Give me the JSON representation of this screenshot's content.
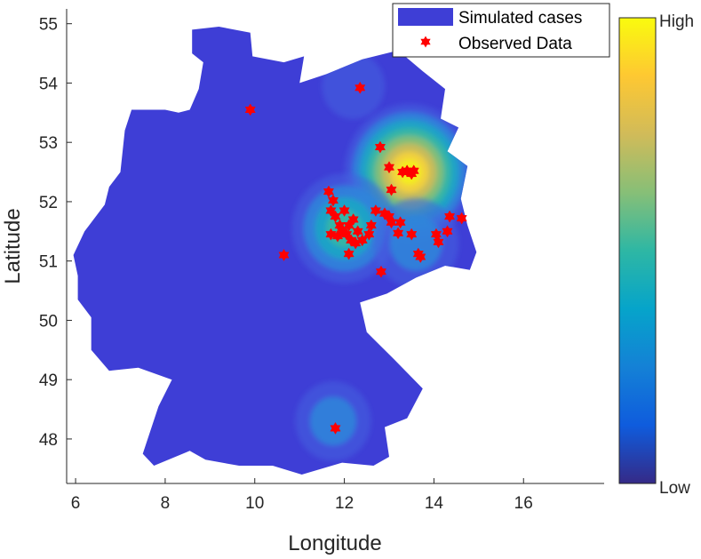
{
  "chart_data": {
    "type": "scatter",
    "background_map": "Germany outline with simulated case density heatmap",
    "xlabel": "Longitude",
    "ylabel": "Latitude",
    "xlim": [
      5.8,
      17.8
    ],
    "ylim": [
      47.25,
      55.25
    ],
    "xticks": [
      6,
      8,
      10,
      12,
      14,
      16
    ],
    "yticks": [
      48,
      49,
      50,
      51,
      52,
      53,
      54,
      55
    ],
    "grid": false,
    "legend": {
      "placement": "top-right",
      "entries": [
        {
          "label": "Simulated cases",
          "marker": "patch",
          "color": "#3e3ed6"
        },
        {
          "label": "Observed Data",
          "marker": "hexagram",
          "color": "#ff0000"
        }
      ]
    },
    "colorbar": {
      "colormap": "parula",
      "low_label": "Low",
      "high_label": "High",
      "colors": [
        "#352a87",
        "#0f5cdd",
        "#1481d6",
        "#06a4ca",
        "#2eb7a4",
        "#87bf77",
        "#d1bb59",
        "#fec832",
        "#f9fb0e"
      ]
    },
    "hotspots": [
      {
        "name": "Berlin area",
        "lon": 13.45,
        "lat": 52.5,
        "intensity": 1.0
      },
      {
        "name": "Leipzig area",
        "lon": 12.0,
        "lat": 51.55,
        "intensity": 0.55
      },
      {
        "name": "Dresden area",
        "lon": 13.6,
        "lat": 51.3,
        "intensity": 0.3
      },
      {
        "name": "Munich area",
        "lon": 11.75,
        "lat": 48.3,
        "intensity": 0.2
      },
      {
        "name": "Rostock area",
        "lon": 12.2,
        "lat": 53.95,
        "intensity": 0.1
      }
    ],
    "observed_points": [
      {
        "lon": 9.9,
        "lat": 53.55
      },
      {
        "lon": 12.35,
        "lat": 53.92
      },
      {
        "lon": 12.8,
        "lat": 52.92
      },
      {
        "lon": 13.0,
        "lat": 52.58
      },
      {
        "lon": 13.3,
        "lat": 52.5
      },
      {
        "lon": 13.4,
        "lat": 52.52
      },
      {
        "lon": 13.5,
        "lat": 52.47
      },
      {
        "lon": 13.55,
        "lat": 52.52
      },
      {
        "lon": 13.05,
        "lat": 52.2
      },
      {
        "lon": 11.65,
        "lat": 52.17
      },
      {
        "lon": 11.75,
        "lat": 52.02
      },
      {
        "lon": 11.7,
        "lat": 51.85
      },
      {
        "lon": 11.8,
        "lat": 51.75
      },
      {
        "lon": 11.9,
        "lat": 51.6
      },
      {
        "lon": 12.0,
        "lat": 51.85
      },
      {
        "lon": 11.95,
        "lat": 51.5
      },
      {
        "lon": 12.05,
        "lat": 51.45
      },
      {
        "lon": 12.1,
        "lat": 51.6
      },
      {
        "lon": 12.2,
        "lat": 51.7
      },
      {
        "lon": 12.3,
        "lat": 51.5
      },
      {
        "lon": 12.4,
        "lat": 51.35
      },
      {
        "lon": 11.7,
        "lat": 51.45
      },
      {
        "lon": 11.85,
        "lat": 51.42
      },
      {
        "lon": 12.15,
        "lat": 51.35
      },
      {
        "lon": 12.25,
        "lat": 51.3
      },
      {
        "lon": 12.1,
        "lat": 51.12
      },
      {
        "lon": 12.55,
        "lat": 51.45
      },
      {
        "lon": 12.6,
        "lat": 51.6
      },
      {
        "lon": 12.7,
        "lat": 51.85
      },
      {
        "lon": 12.9,
        "lat": 51.8
      },
      {
        "lon": 13.0,
        "lat": 51.75
      },
      {
        "lon": 13.05,
        "lat": 51.65
      },
      {
        "lon": 13.25,
        "lat": 51.65
      },
      {
        "lon": 13.2,
        "lat": 51.47
      },
      {
        "lon": 13.5,
        "lat": 51.45
      },
      {
        "lon": 13.65,
        "lat": 51.12
      },
      {
        "lon": 13.7,
        "lat": 51.07
      },
      {
        "lon": 14.05,
        "lat": 51.45
      },
      {
        "lon": 14.1,
        "lat": 51.32
      },
      {
        "lon": 14.3,
        "lat": 51.5
      },
      {
        "lon": 14.35,
        "lat": 51.75
      },
      {
        "lon": 14.62,
        "lat": 51.72
      },
      {
        "lon": 12.82,
        "lat": 50.82
      },
      {
        "lon": 10.65,
        "lat": 51.1
      },
      {
        "lon": 11.8,
        "lat": 48.18
      }
    ]
  }
}
